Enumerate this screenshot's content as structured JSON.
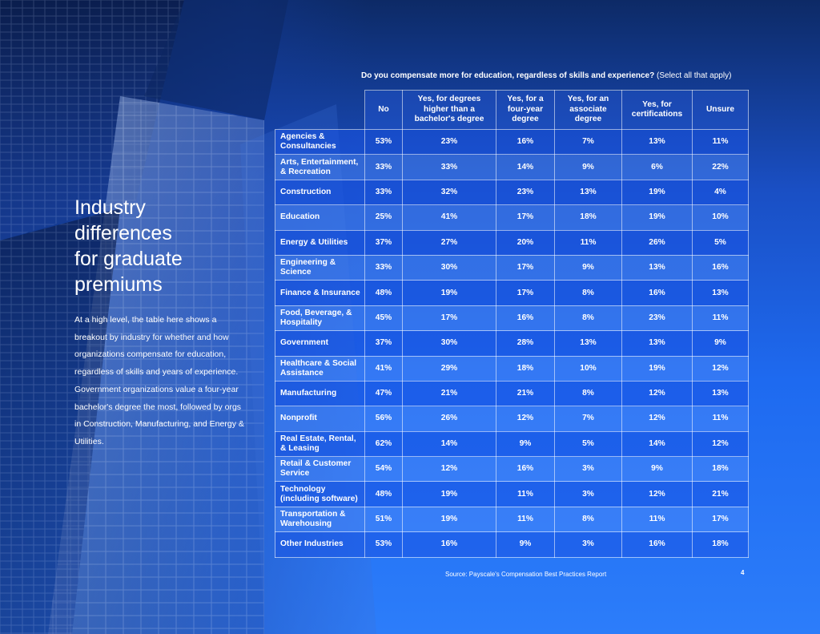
{
  "colors": {
    "background": "#1d63ee",
    "text": "#ffffff"
  },
  "left": {
    "title_lines": [
      "Industry",
      "differences",
      "for graduate",
      "premiums"
    ],
    "body": "At a high level, the table here shows a breakout by industry for whether and how organizations compensate for education, regardless of skills and years of experience. Government organizations value a four-year bachelor's degree the most, followed by orgs in Construction, Manufacturing, and Energy & Utilities."
  },
  "question": {
    "bold": "Do you compensate more for education, regardless of skills and experience?",
    "note": "(Select all that apply)"
  },
  "table": {
    "headers": [
      "No",
      "Yes, for degrees higher than a bachelor's degree",
      "Yes, for a four-year degree",
      "Yes, for an associate degree",
      "Yes, for certifications",
      "Unsure"
    ],
    "rows": [
      {
        "label": "Agencies & Consultancies",
        "values": [
          "53%",
          "23%",
          "16%",
          "7%",
          "13%",
          "11%"
        ]
      },
      {
        "label": "Arts, Entertainment, & Recreation",
        "values": [
          "33%",
          "33%",
          "14%",
          "9%",
          "6%",
          "22%"
        ]
      },
      {
        "label": "Construction",
        "values": [
          "33%",
          "32%",
          "23%",
          "13%",
          "19%",
          "4%"
        ]
      },
      {
        "label": "Education",
        "values": [
          "25%",
          "41%",
          "17%",
          "18%",
          "19%",
          "10%"
        ]
      },
      {
        "label": "Energy & Utilities",
        "values": [
          "37%",
          "27%",
          "20%",
          "11%",
          "26%",
          "5%"
        ]
      },
      {
        "label": "Engineering & Science",
        "values": [
          "33%",
          "30%",
          "17%",
          "9%",
          "13%",
          "16%"
        ]
      },
      {
        "label": "Finance & Insurance",
        "values": [
          "48%",
          "19%",
          "17%",
          "8%",
          "16%",
          "13%"
        ]
      },
      {
        "label": "Food, Beverage, & Hospitality",
        "values": [
          "45%",
          "17%",
          "16%",
          "8%",
          "23%",
          "11%"
        ]
      },
      {
        "label": "Government",
        "values": [
          "37%",
          "30%",
          "28%",
          "13%",
          "13%",
          "9%"
        ]
      },
      {
        "label": "Healthcare & Social Assistance",
        "values": [
          "41%",
          "29%",
          "18%",
          "10%",
          "19%",
          "12%"
        ]
      },
      {
        "label": "Manufacturing",
        "values": [
          "47%",
          "21%",
          "21%",
          "8%",
          "12%",
          "13%"
        ]
      },
      {
        "label": "Nonprofit",
        "values": [
          "56%",
          "26%",
          "12%",
          "7%",
          "12%",
          "11%"
        ]
      },
      {
        "label": "Real Estate, Rental, & Leasing",
        "values": [
          "62%",
          "14%",
          "9%",
          "5%",
          "14%",
          "12%"
        ]
      },
      {
        "label": "Retail & Customer Service",
        "values": [
          "54%",
          "12%",
          "16%",
          "3%",
          "9%",
          "18%"
        ]
      },
      {
        "label": "Technology (including software)",
        "values": [
          "48%",
          "19%",
          "11%",
          "3%",
          "12%",
          "21%"
        ]
      },
      {
        "label": "Transportation & Warehousing",
        "values": [
          "51%",
          "19%",
          "11%",
          "8%",
          "11%",
          "17%"
        ]
      },
      {
        "label": "Other Industries",
        "values": [
          "53%",
          "16%",
          "9%",
          "3%",
          "16%",
          "18%"
        ]
      }
    ]
  },
  "footer": {
    "source": "Source: Payscale's Compensation Best Practices Report",
    "page_number": "4"
  }
}
